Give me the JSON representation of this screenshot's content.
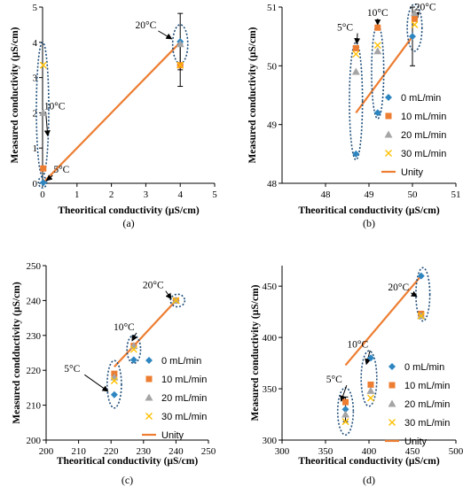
{
  "colors": {
    "s0": "#2e86c1",
    "s1": "#ed7d31",
    "s2": "#a5a5a5",
    "s3": "#ffc000",
    "unity": "#ed7d31",
    "ellipse": "#1f4e79"
  },
  "chart_data": [
    {
      "id": "a",
      "type": "scatter",
      "panel_label": "(a)",
      "xlabel": "Theoritical conductivity (µS/cm)",
      "ylabel": "Measured conductivity (µS/cm)",
      "xlim": [
        0,
        5
      ],
      "ylim": [
        0,
        5
      ],
      "xticks": [
        0,
        1,
        2,
        3,
        4,
        5
      ],
      "yticks": [
        0,
        1,
        2,
        3,
        4,
        5
      ],
      "series": [
        {
          "name": "0 mL/min",
          "marker": "diamond",
          "x": [
            0.02,
            4.0
          ],
          "y": [
            0.02,
            4.02
          ],
          "err": [
            0,
            0.8
          ]
        },
        {
          "name": "10 mL/min",
          "marker": "square",
          "x": [
            0.02,
            4.0
          ],
          "y": [
            0.42,
            3.35
          ],
          "err": [
            0,
            0.6
          ]
        },
        {
          "name": "20 mL/min",
          "marker": "triangle",
          "x": [
            0.02,
            4.0
          ],
          "y": [
            2.0,
            3.95
          ],
          "err": [
            0,
            0
          ]
        },
        {
          "name": "30 mL/min",
          "marker": "x",
          "x": [
            0.02,
            4.0
          ],
          "y": [
            3.35,
            3.35
          ],
          "err": [
            0,
            0
          ]
        }
      ],
      "unity": {
        "name": "Unity",
        "x": [
          0,
          4
        ],
        "y": [
          0,
          4
        ]
      },
      "annotations": [
        {
          "text": "20°C"
        },
        {
          "text": "10°C"
        },
        {
          "text": "5°C"
        }
      ]
    },
    {
      "id": "b",
      "type": "scatter",
      "panel_label": "(b)",
      "xlabel": "Theoritical conductivity (µS/cm)",
      "ylabel": "Measured conductivity (µS/cm)",
      "xlim": [
        47,
        51
      ],
      "ylim": [
        48,
        51
      ],
      "xticks": [
        48,
        49,
        50,
        51
      ],
      "yticks": [
        48,
        49,
        50,
        51
      ],
      "series": [
        {
          "name": "0 mL/min",
          "marker": "diamond",
          "x": [
            48.7,
            49.2,
            50.0
          ],
          "y": [
            48.5,
            49.2,
            50.5
          ],
          "err": [
            0,
            0,
            0.5
          ]
        },
        {
          "name": "10 mL/min",
          "marker": "square",
          "x": [
            48.7,
            49.2,
            50.05
          ],
          "y": [
            50.3,
            50.65,
            50.8
          ],
          "err": [
            0,
            0,
            0
          ]
        },
        {
          "name": "20 mL/min",
          "marker": "triangle",
          "x": [
            48.7,
            49.2,
            50.05
          ],
          "y": [
            49.9,
            50.25,
            50.9
          ],
          "err": [
            0,
            0,
            0
          ]
        },
        {
          "name": "30 mL/min",
          "marker": "x",
          "x": [
            48.7,
            49.2,
            50.05
          ],
          "y": [
            50.2,
            50.35,
            50.7
          ],
          "err": [
            0,
            0,
            0
          ]
        }
      ],
      "unity": {
        "name": "Unity",
        "x": [
          48.7,
          50.0
        ],
        "y": [
          49.2,
          50.5
        ]
      },
      "annotations": [
        {
          "text": "5°C"
        },
        {
          "text": "10°C"
        },
        {
          "text": "20°C"
        }
      ]
    },
    {
      "id": "c",
      "type": "scatter",
      "panel_label": "(c)",
      "xlabel": "Theoritical conductivity (µS/cm)",
      "ylabel": "Measured condductivity (µS/cm)",
      "xlim": [
        200,
        250
      ],
      "ylim": [
        200,
        250
      ],
      "xticks": [
        200,
        210,
        220,
        230,
        240,
        250
      ],
      "yticks": [
        200,
        210,
        220,
        230,
        240,
        250
      ],
      "series": [
        {
          "name": "0 mL/min",
          "marker": "diamond",
          "x": [
            221,
            227,
            240
          ],
          "y": [
            213,
            223,
            240
          ],
          "err": [
            0,
            0,
            0
          ]
        },
        {
          "name": "10 mL/min",
          "marker": "square",
          "x": [
            221,
            227,
            240
          ],
          "y": [
            219,
            227,
            240
          ],
          "err": [
            0,
            0,
            0
          ]
        },
        {
          "name": "20 mL/min",
          "marker": "triangle",
          "x": [
            221,
            227,
            240
          ],
          "y": [
            218,
            227,
            240
          ],
          "err": [
            0,
            0,
            0
          ]
        },
        {
          "name": "30 mL/min",
          "marker": "x",
          "x": [
            221,
            227,
            240
          ],
          "y": [
            217,
            226,
            240
          ],
          "err": [
            0,
            0,
            0
          ]
        }
      ],
      "unity": {
        "name": "Unity",
        "x": [
          221,
          240
        ],
        "y": [
          221,
          240
        ]
      },
      "annotations": [
        {
          "text": "20°C"
        },
        {
          "text": "10°C"
        },
        {
          "text": "5°C"
        }
      ]
    },
    {
      "id": "d",
      "type": "scatter",
      "panel_label": "(d)",
      "xlabel": "Theoritical conductivity (µS/cm)",
      "ylabel": "Measured conductivity  (µS/cm)",
      "xlim": [
        300,
        500
      ],
      "ylim": [
        300,
        470
      ],
      "xticks": [
        300,
        350,
        400,
        450,
        500
      ],
      "yticks": [
        300,
        350,
        400,
        450
      ],
      "series": [
        {
          "name": "0 mL/min",
          "marker": "diamond",
          "x": [
            373,
            402,
            460
          ],
          "y": [
            330,
            380,
            460
          ],
          "err": [
            12,
            0,
            0
          ]
        },
        {
          "name": "10 mL/min",
          "marker": "square",
          "x": [
            373,
            402,
            460
          ],
          "y": [
            337,
            354,
            423
          ],
          "err": [
            0,
            0,
            0
          ]
        },
        {
          "name": "20 mL/min",
          "marker": "triangle",
          "x": [
            373,
            402,
            460
          ],
          "y": [
            325,
            348,
            421
          ],
          "err": [
            0,
            0,
            0
          ]
        },
        {
          "name": "30 mL/min",
          "marker": "x",
          "x": [
            373,
            402,
            460
          ],
          "y": [
            318,
            341,
            421
          ],
          "err": [
            0,
            0,
            0
          ]
        }
      ],
      "unity": {
        "name": "Unity",
        "x": [
          373,
          460
        ],
        "y": [
          373,
          460
        ]
      },
      "annotations": [
        {
          "text": "20°C"
        },
        {
          "text": "10°C"
        },
        {
          "text": "5°C"
        }
      ]
    }
  ]
}
